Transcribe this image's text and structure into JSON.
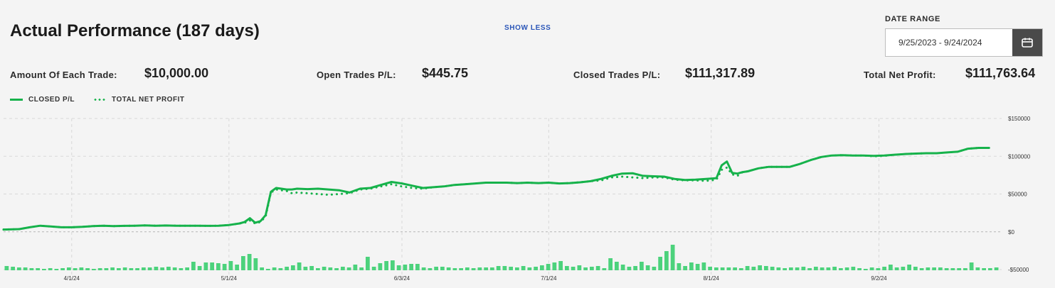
{
  "header": {
    "title": "Actual Performance (187 days)",
    "show_less": "SHOW LESS",
    "date_range_label": "DATE RANGE",
    "date_range_value": "9/25/2023 - 9/24/2024",
    "calendar_icon": "calendar-icon"
  },
  "stats": {
    "amount_label": "Amount Of Each Trade:",
    "amount_value": "$10,000.00",
    "open_label": "Open Trades P/L:",
    "open_value": "$445.75",
    "closed_label": "Closed Trades P/L:",
    "closed_value": "$111,317.89",
    "net_label": "Total Net Profit:",
    "net_value": "$111,763.64"
  },
  "legend": {
    "closed": "CLOSED P/L",
    "total": "TOTAL NET PROFIT"
  },
  "colors": {
    "line": "#16b24b",
    "bars": "#4cd27c",
    "grid": "#d8d8d8",
    "zero": "#b5b5b5"
  },
  "chart_data": {
    "type": "line",
    "x_tick_labels": [
      "4/1/24",
      "5/1/24",
      "6/3/24",
      "7/1/24",
      "8/1/24",
      "9/2/24"
    ],
    "x_tick_days": [
      13,
      43,
      76,
      104,
      135,
      167
    ],
    "x_range_days": [
      0,
      190
    ],
    "y_tick_labels": [
      "$150000",
      "$100000",
      "$50000",
      "$0",
      "-$50000"
    ],
    "y_ticks": [
      150000,
      100000,
      50000,
      0,
      -50000
    ],
    "ylim": [
      -50000,
      150000
    ],
    "grid": true,
    "series": [
      {
        "name": "CLOSED P/L",
        "style": "solid",
        "x": [
          0,
          3,
          5,
          7,
          9,
          11,
          13,
          15,
          17,
          19,
          21,
          23,
          25,
          27,
          29,
          31,
          33,
          35,
          37,
          39,
          41,
          43,
          45,
          46,
          47,
          48,
          49,
          50,
          51,
          52,
          53,
          54,
          55,
          56,
          58,
          60,
          62,
          64,
          66,
          68,
          70,
          72,
          74,
          76,
          78,
          80,
          82,
          84,
          86,
          88,
          90,
          92,
          94,
          96,
          98,
          100,
          102,
          104,
          106,
          108,
          110,
          112,
          114,
          116,
          118,
          120,
          122,
          124,
          126,
          128,
          130,
          132,
          134,
          135,
          136,
          137,
          138,
          139,
          140,
          141,
          142,
          144,
          146,
          148,
          150,
          152,
          154,
          156,
          158,
          160,
          162,
          164,
          166,
          168,
          170,
          172,
          174,
          176,
          178,
          180,
          182,
          184,
          186,
          188
        ],
        "values": [
          3000,
          3500,
          6000,
          8000,
          7000,
          6000,
          6000,
          6500,
          7500,
          8000,
          7500,
          7800,
          8000,
          8500,
          8000,
          8300,
          8000,
          8000,
          8000,
          7800,
          8000,
          9000,
          11000,
          13000,
          18000,
          12000,
          14000,
          22000,
          53000,
          58000,
          57000,
          56000,
          56000,
          57000,
          56500,
          57000,
          56000,
          55000,
          52000,
          57000,
          58000,
          62000,
          66000,
          64000,
          61000,
          58000,
          59000,
          60000,
          62000,
          63000,
          64000,
          65000,
          65000,
          65000,
          64500,
          65000,
          64500,
          65000,
          64000,
          64500,
          65500,
          67000,
          70000,
          74000,
          77000,
          77500,
          74000,
          73500,
          73000,
          70000,
          68500,
          69000,
          70000,
          70500,
          71000,
          88000,
          93000,
          78000,
          77000,
          79000,
          80000,
          84000,
          86000,
          86000,
          86000,
          90000,
          95000,
          99000,
          101000,
          101500,
          101000,
          101000,
          100500,
          101000,
          102000,
          103000,
          103500,
          104000,
          104000,
          105000,
          106000,
          110000,
          111000,
          111000
        ]
      },
      {
        "name": "TOTAL NET PROFIT",
        "style": "dotted",
        "x": [
          0,
          3,
          5,
          7,
          9,
          11,
          13,
          15,
          17,
          19,
          21,
          23,
          25,
          27,
          29,
          31,
          33,
          35,
          37,
          39,
          41,
          43,
          45,
          46,
          47,
          48,
          49,
          50,
          51,
          52,
          53,
          54,
          55,
          56,
          58,
          60,
          62,
          64,
          66,
          68,
          70,
          72,
          74,
          76,
          78,
          80,
          82,
          84,
          86,
          88,
          90,
          92,
          94,
          96,
          98,
          100,
          102,
          104,
          106,
          108,
          110,
          112,
          114,
          116,
          118,
          120,
          122,
          124,
          126,
          128,
          130,
          132,
          134,
          135,
          136,
          137,
          138,
          139,
          140,
          141,
          142,
          144,
          146,
          148,
          150,
          152,
          154,
          156,
          158,
          160,
          162,
          164,
          166,
          168,
          170,
          172,
          174,
          176,
          178,
          180,
          182,
          184,
          186,
          188
        ],
        "values": [
          3000,
          3500,
          6000,
          8000,
          7000,
          6000,
          6000,
          6500,
          7500,
          8000,
          7500,
          7800,
          8000,
          8500,
          8000,
          8300,
          8000,
          8000,
          8000,
          7800,
          8000,
          9000,
          11000,
          12000,
          15000,
          11000,
          13000,
          20000,
          52000,
          56000,
          55000,
          54000,
          51000,
          52000,
          51000,
          50000,
          49000,
          50000,
          51000,
          56000,
          57000,
          60000,
          63000,
          60000,
          58000,
          57000,
          59000,
          60000,
          62000,
          63000,
          64000,
          65000,
          65000,
          65000,
          64500,
          65000,
          64500,
          65000,
          64000,
          64500,
          65500,
          67000,
          68000,
          72000,
          73000,
          72000,
          71000,
          72000,
          72000,
          69000,
          68000,
          68000,
          67500,
          68000,
          69000,
          82000,
          85000,
          76000,
          74000,
          79000,
          80000,
          84000,
          86000,
          86000,
          86000,
          90000,
          95000,
          99000,
          101000,
          101500,
          101000,
          101000,
          100000,
          100500,
          102000,
          103000,
          103500,
          104000,
          104000,
          105000,
          106000,
          110000,
          111000,
          111000
        ]
      }
    ],
    "volume_bars": [
      6,
      5,
      4,
      4,
      3,
      3,
      2,
      3,
      2,
      3,
      4,
      3,
      4,
      3,
      2,
      3,
      3,
      4,
      3,
      4,
      3,
      3,
      4,
      4,
      5,
      4,
      5,
      4,
      3,
      4,
      12,
      6,
      11,
      11,
      10,
      9,
      13,
      8,
      20,
      23,
      17,
      4,
      2,
      4,
      3,
      5,
      7,
      11,
      5,
      6,
      3,
      5,
      4,
      3,
      5,
      4,
      8,
      4,
      19,
      5,
      10,
      13,
      14,
      7,
      8,
      9,
      9,
      4,
      3,
      5,
      5,
      4,
      3,
      3,
      4,
      3,
      4,
      4,
      4,
      6,
      6,
      5,
      4,
      6,
      4,
      5,
      7,
      9,
      11,
      13,
      6,
      5,
      7,
      4,
      5,
      6,
      3,
      17,
      12,
      8,
      5,
      6,
      12,
      7,
      5,
      19,
      27,
      36,
      10,
      6,
      11,
      9,
      11,
      5,
      4,
      4,
      4,
      4,
      3,
      6,
      5,
      7,
      6,
      5,
      4,
      3,
      4,
      4,
      5,
      3,
      5,
      4,
      4,
      5,
      3,
      4,
      5,
      3,
      2,
      4,
      3,
      5,
      8,
      4,
      5,
      8,
      5,
      3,
      4,
      4,
      4,
      3,
      3,
      3,
      3,
      11,
      4,
      3,
      3,
      4
    ]
  }
}
